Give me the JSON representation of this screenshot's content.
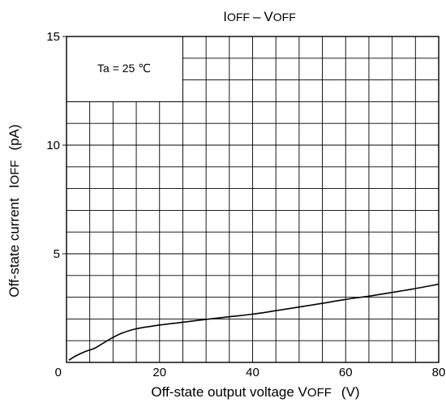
{
  "chart_data": {
    "type": "line",
    "title": "I OFF – V OFF",
    "xlabel": "Off-state output voltage V OFF (V)",
    "ylabel": "Off-state current I OFF (pA)",
    "xlim": [
      0,
      80
    ],
    "ylim": [
      0,
      15
    ],
    "x_major_ticks": [
      0,
      20,
      40,
      60,
      80
    ],
    "y_major_ticks": [
      5,
      10,
      15
    ],
    "x_grid_step": 5,
    "y_grid_step": 1,
    "grid": true,
    "annotation": "Ta = 25 ℃",
    "series": [
      {
        "x": [
          0.5,
          2,
          4,
          6,
          8,
          10,
          12,
          15,
          20,
          25,
          30,
          35,
          40,
          45,
          50,
          55,
          60,
          65,
          70,
          75,
          80
        ],
        "y": [
          0.1,
          0.3,
          0.5,
          0.65,
          0.9,
          1.15,
          1.35,
          1.55,
          1.72,
          1.85,
          1.98,
          2.1,
          2.22,
          2.38,
          2.55,
          2.72,
          2.9,
          3.05,
          3.22,
          3.4,
          3.6
        ]
      }
    ]
  }
}
